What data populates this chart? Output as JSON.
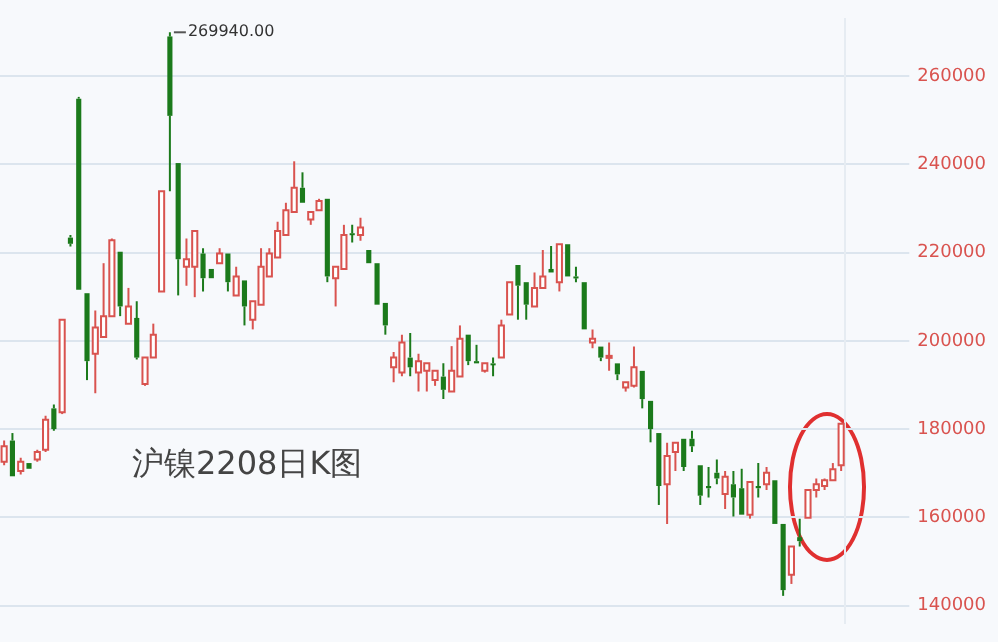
{
  "chart_data": {
    "type": "candlestick",
    "categories": [
      null,
      null,
      null,
      null,
      null,
      null,
      null,
      null,
      null,
      null,
      null,
      null,
      null,
      null,
      null,
      null,
      null,
      null,
      null,
      null,
      null,
      null,
      null,
      null,
      null,
      null,
      null,
      null,
      null,
      null,
      null,
      null,
      null,
      null,
      null,
      null,
      null,
      null,
      null,
      null,
      null,
      null,
      null,
      null,
      null,
      null,
      null,
      null,
      null,
      null,
      null,
      null,
      null,
      null,
      null,
      null,
      null,
      null,
      null,
      null,
      null,
      null,
      null,
      null,
      null,
      null,
      null,
      null,
      null,
      null,
      null,
      null,
      null,
      null,
      null,
      null,
      null,
      null,
      null,
      null,
      null,
      null,
      null,
      null,
      null,
      null,
      null,
      null,
      null,
      null,
      null,
      null,
      null,
      null,
      null,
      null,
      null,
      null,
      null,
      null,
      null,
      null
    ],
    "ohlc": [
      [
        172600,
        177400,
        171800,
        176100
      ],
      [
        177400,
        179100,
        169300,
        169300
      ],
      [
        170500,
        173500,
        169700,
        172600
      ],
      [
        172300,
        172300,
        171000,
        171000
      ],
      [
        173100,
        175300,
        172600,
        174800
      ],
      [
        175300,
        183000,
        174800,
        182100
      ],
      [
        184700,
        185600,
        179600,
        180000
      ],
      [
        183800,
        204800,
        183400,
        204800
      ],
      [
        223400,
        224000,
        221400,
        222000
      ],
      [
        254900,
        255300,
        211600,
        211600
      ],
      [
        210800,
        210800,
        191100,
        195400
      ],
      [
        197100,
        206900,
        188100,
        203000
      ],
      [
        200900,
        217600,
        200900,
        205600
      ],
      [
        205600,
        223200,
        205600,
        222800
      ],
      [
        220200,
        220200,
        205600,
        207800
      ],
      [
        203900,
        212000,
        203900,
        207800
      ],
      [
        205200,
        209000,
        195800,
        196200
      ],
      [
        190200,
        196200,
        189800,
        196200
      ],
      [
        196200,
        203900,
        196200,
        201400
      ],
      [
        211200,
        233900,
        211200,
        233900
      ],
      [
        269000,
        269940,
        233900,
        251000
      ],
      [
        240300,
        240300,
        210300,
        218500
      ],
      [
        216800,
        223200,
        212500,
        218500
      ],
      [
        216800,
        224900,
        209900,
        224900
      ],
      [
        219800,
        221000,
        211200,
        214200
      ],
      [
        216300,
        216300,
        214200,
        214200
      ],
      [
        217600,
        221000,
        217600,
        219800
      ],
      [
        219800,
        219800,
        211200,
        213300
      ],
      [
        210300,
        216800,
        210300,
        214600
      ],
      [
        213700,
        213700,
        203500,
        207800
      ],
      [
        204800,
        209000,
        202600,
        209000
      ],
      [
        208200,
        221000,
        208200,
        216800
      ],
      [
        214600,
        221000,
        214600,
        219800
      ],
      [
        218900,
        227000,
        218900,
        224900
      ],
      [
        224000,
        231300,
        224000,
        229600
      ],
      [
        229200,
        240700,
        229200,
        234700
      ],
      [
        234700,
        238200,
        231300,
        231300
      ],
      [
        227500,
        229200,
        226300,
        229200
      ],
      [
        229600,
        232200,
        229600,
        231700
      ],
      [
        232200,
        232200,
        213300,
        214600
      ],
      [
        214200,
        216800,
        207800,
        216800
      ],
      [
        216300,
        226300,
        216300,
        224000
      ],
      [
        224400,
        226300,
        222300,
        224000
      ],
      [
        224000,
        227900,
        222700,
        225700
      ],
      [
        220600,
        220600,
        217600,
        217600
      ],
      [
        217600,
        217600,
        208200,
        208200
      ],
      [
        208600,
        208600,
        201400,
        203500
      ],
      [
        194000,
        197500,
        190600,
        196200
      ],
      [
        192800,
        201400,
        192000,
        199600
      ],
      [
        196200,
        201800,
        192000,
        194000
      ],
      [
        192800,
        197100,
        188500,
        195400
      ],
      [
        193200,
        195000,
        188500,
        194900
      ],
      [
        191100,
        193200,
        189800,
        193200
      ],
      [
        191900,
        194900,
        186800,
        188900
      ],
      [
        188500,
        198800,
        188500,
        193200
      ],
      [
        191900,
        203500,
        191900,
        200500
      ],
      [
        201400,
        201400,
        194500,
        195400
      ],
      [
        195400,
        199100,
        194900,
        194900
      ],
      [
        193200,
        194900,
        192800,
        194900
      ],
      [
        194900,
        196200,
        192000,
        194500
      ],
      [
        196200,
        204800,
        196200,
        203500
      ],
      [
        206000,
        213300,
        206000,
        213300
      ],
      [
        217200,
        217200,
        204800,
        212500
      ],
      [
        213300,
        213300,
        204800,
        208200
      ],
      [
        207800,
        215500,
        207800,
        212000
      ],
      [
        212000,
        220600,
        212000,
        214600
      ],
      [
        216300,
        221500,
        215500,
        215500
      ],
      [
        213300,
        221900,
        211200,
        221900
      ],
      [
        221900,
        221900,
        214600,
        214600
      ],
      [
        214600,
        216800,
        213300,
        214200
      ],
      [
        213300,
        213300,
        202600,
        202600
      ],
      [
        199600,
        202600,
        198300,
        200500
      ],
      [
        198700,
        198700,
        195400,
        196200
      ],
      [
        196200,
        199600,
        193200,
        196600
      ],
      [
        194900,
        194900,
        191100,
        192400
      ],
      [
        189400,
        190600,
        188500,
        190600
      ],
      [
        189800,
        198700,
        189400,
        194000
      ],
      [
        193200,
        193200,
        184700,
        186800
      ],
      [
        186400,
        186400,
        177000,
        180000
      ],
      [
        179100,
        179100,
        162800,
        167100
      ],
      [
        167500,
        176900,
        158500,
        173900
      ],
      [
        174800,
        176900,
        170500,
        176900
      ],
      [
        177800,
        177800,
        170500,
        171400
      ],
      [
        177800,
        179600,
        174800,
        176100
      ],
      [
        171800,
        171800,
        162800,
        164900
      ],
      [
        167100,
        171400,
        164500,
        166600
      ],
      [
        170100,
        173100,
        167500,
        168800
      ],
      [
        165300,
        170500,
        161900,
        169200
      ],
      [
        167500,
        170500,
        160200,
        164500
      ],
      [
        166600,
        171000,
        160600,
        160600
      ],
      [
        160600,
        168000,
        159700,
        168000
      ],
      [
        167100,
        172300,
        164500,
        166600
      ],
      [
        167500,
        171400,
        166200,
        170100
      ],
      [
        168400,
        168400,
        158500,
        158500
      ],
      [
        158500,
        158500,
        142200,
        143500
      ],
      [
        147000,
        153400,
        144900,
        153400
      ],
      [
        155500,
        159700,
        153400,
        154600
      ],
      [
        159900,
        166200,
        159900,
        166200
      ],
      [
        166200,
        168800,
        164500,
        167500
      ],
      [
        167100,
        168800,
        166200,
        168400
      ],
      [
        168400,
        172300,
        168400,
        170900
      ],
      [
        171800,
        181200,
        170500,
        181200
      ]
    ],
    "ylim": [
      136000,
      273000
    ],
    "yticks": [
      140000,
      160000,
      180000,
      200000,
      220000,
      240000,
      260000
    ],
    "grid": "y",
    "tick_labels": "y",
    "legend": false,
    "annotations": [
      "269940.00",
      "沪镍2208日K图"
    ]
  }
}
